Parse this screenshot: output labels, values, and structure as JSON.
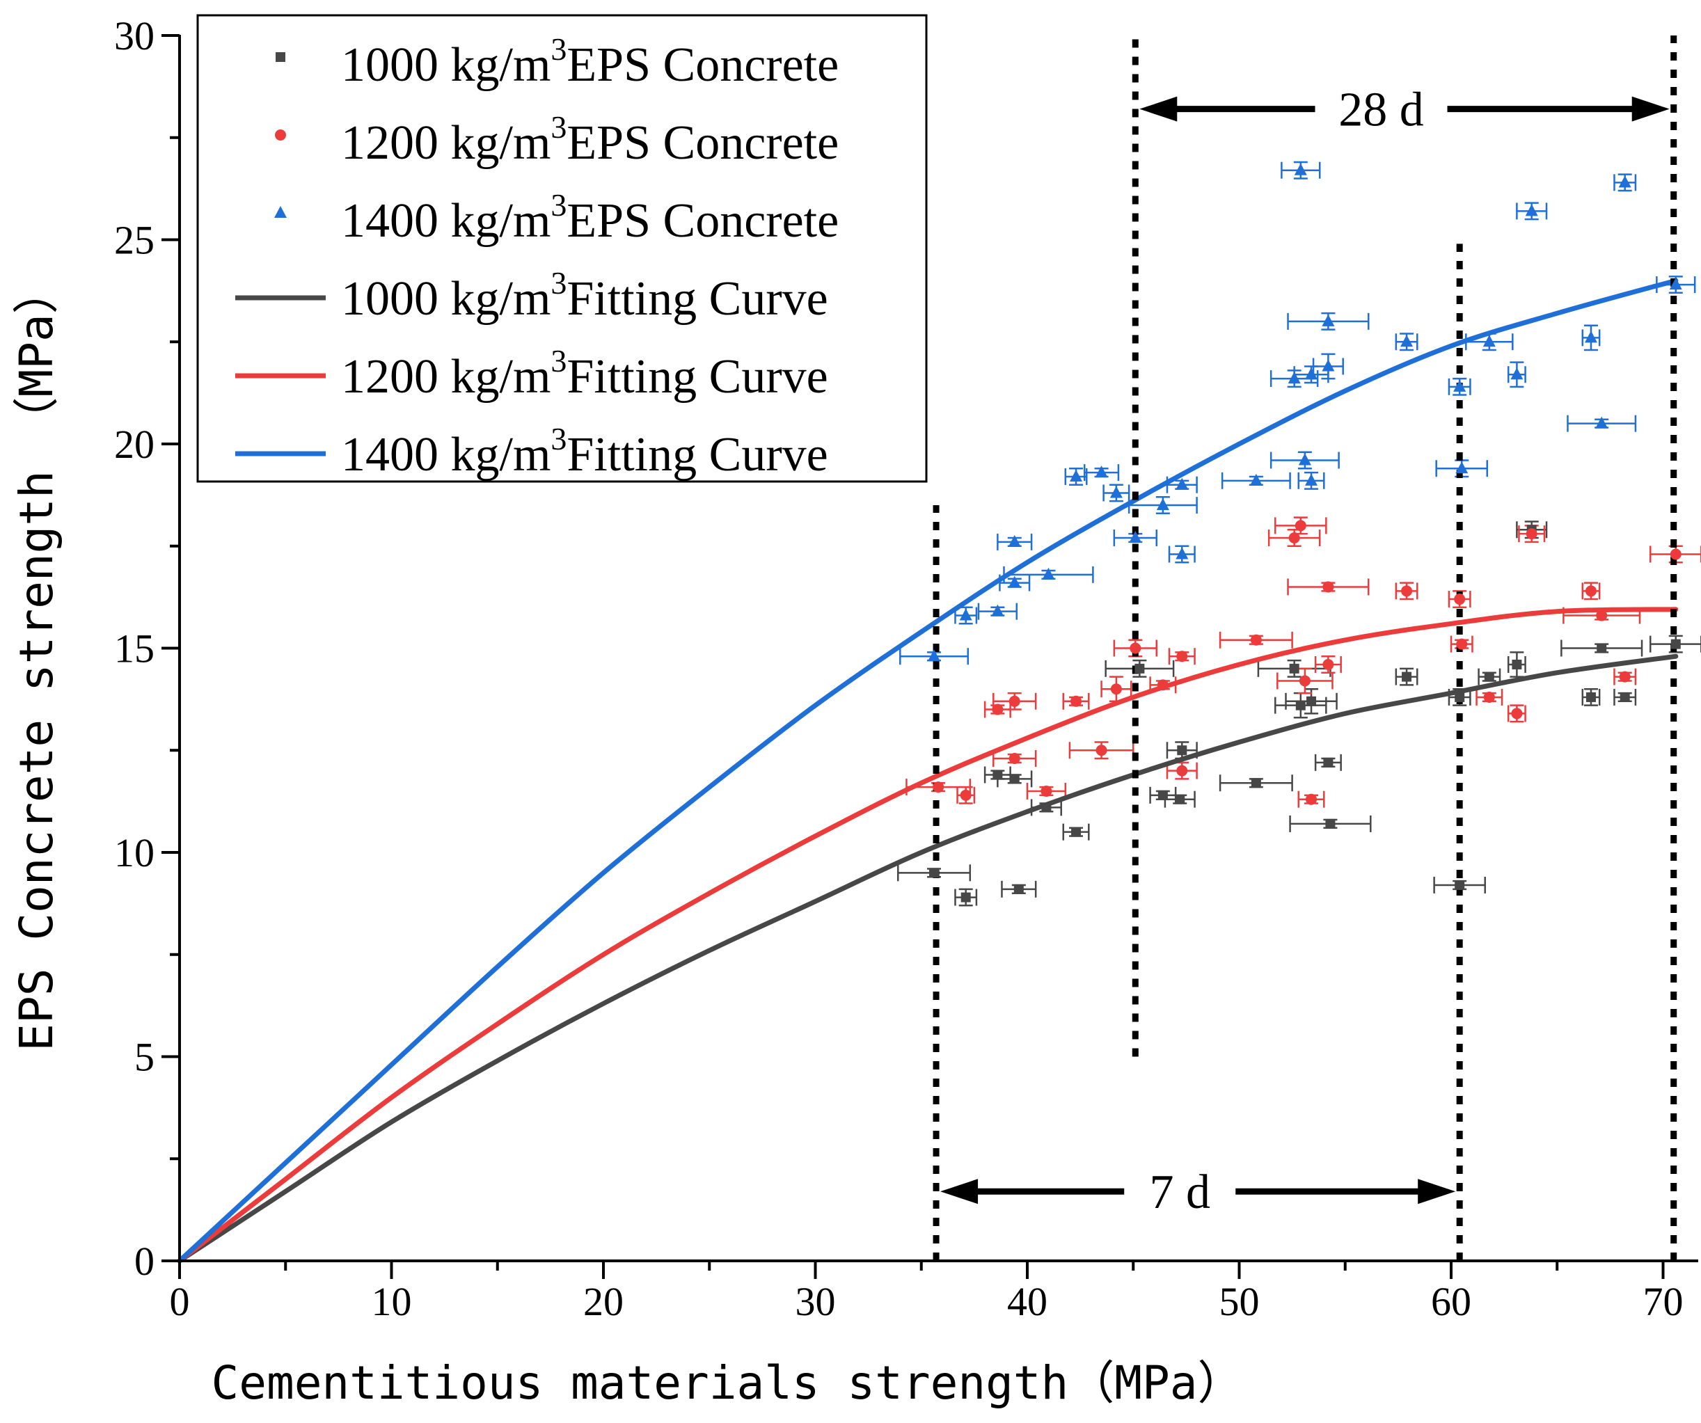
{
  "chart_data": {
    "type": "scatter",
    "title": "",
    "xlabel": "Cementitious materials strength（MPa）",
    "ylabel": "EPS Concrete strength （MPa）",
    "xlim": [
      0,
      72
    ],
    "ylim": [
      0,
      30
    ],
    "x_ticks": [
      "0",
      "10",
      "20",
      "30",
      "40",
      "50",
      "60",
      "70"
    ],
    "y_ticks": [
      "0",
      "5",
      "10",
      "15",
      "20",
      "25",
      "30"
    ],
    "grid": false,
    "legend_position": "top-left",
    "colors": {
      "s1000": "#474747",
      "s1200": "#ec3b3b",
      "s1400": "#1f6fd8",
      "f1000": "#474747",
      "f1200": "#ec3b3b",
      "f1400": "#1f6fd8",
      "axis": "#000000"
    },
    "legend": [
      {
        "key": "s1000",
        "label": "1000 kg/m",
        "sup": "3",
        "suffix": "EPS Concrete",
        "marker": "square"
      },
      {
        "key": "s1200",
        "label": "1200 kg/m",
        "sup": "3",
        "suffix": "EPS Concrete",
        "marker": "circle"
      },
      {
        "key": "s1400",
        "label": "1400 kg/m",
        "sup": "3",
        "suffix": "EPS Concrete",
        "marker": "triangle"
      },
      {
        "key": "f1000",
        "label": "1000 kg/m",
        "sup": "3",
        "suffix": "Fitting Curve",
        "marker": "line"
      },
      {
        "key": "f1200",
        "label": "1200 kg/m",
        "sup": "3",
        "suffix": "Fitting Curve",
        "marker": "line"
      },
      {
        "key": "f1400",
        "label": "1400 kg/m",
        "sup": "3",
        "suffix": "Fitting Curve",
        "marker": "line"
      }
    ],
    "series": [
      {
        "name": "1000 kg/m3 EPS Concrete",
        "key": "s1000",
        "marker": "square",
        "points": [
          {
            "x": 35.6,
            "y": 9.5,
            "xerr": 1.7,
            "yerr": 0.1
          },
          {
            "x": 37.1,
            "y": 8.9,
            "xerr": 0.5,
            "yerr": 0.2
          },
          {
            "x": 38.6,
            "y": 11.9,
            "xerr": 0.6,
            "yerr": 0.1
          },
          {
            "x": 39.4,
            "y": 11.8,
            "xerr": 0.8,
            "yerr": 0.1
          },
          {
            "x": 39.6,
            "y": 9.1,
            "xerr": 0.8,
            "yerr": 0.1
          },
          {
            "x": 40.9,
            "y": 11.1,
            "xerr": 0.7,
            "yerr": 0.1
          },
          {
            "x": 42.3,
            "y": 10.5,
            "xerr": 0.6,
            "yerr": 0.1
          },
          {
            "x": 45.3,
            "y": 14.5,
            "xerr": 1.6,
            "yerr": 0.2
          },
          {
            "x": 46.4,
            "y": 11.4,
            "xerr": 0.6,
            "yerr": 0.1
          },
          {
            "x": 47.2,
            "y": 11.3,
            "xerr": 0.7,
            "yerr": 0.1
          },
          {
            "x": 47.3,
            "y": 12.5,
            "xerr": 0.7,
            "yerr": 0.2
          },
          {
            "x": 50.8,
            "y": 11.7,
            "xerr": 1.7,
            "yerr": 0.1
          },
          {
            "x": 52.6,
            "y": 14.5,
            "xerr": 1.7,
            "yerr": 0.2
          },
          {
            "x": 52.9,
            "y": 13.6,
            "xerr": 1.2,
            "yerr": 0.3
          },
          {
            "x": 53.4,
            "y": 13.7,
            "xerr": 1.2,
            "yerr": 0.3
          },
          {
            "x": 54.2,
            "y": 12.2,
            "xerr": 0.6,
            "yerr": 0.1
          },
          {
            "x": 54.3,
            "y": 10.7,
            "xerr": 1.9,
            "yerr": 0.1
          },
          {
            "x": 57.9,
            "y": 14.3,
            "xerr": 0.5,
            "yerr": 0.2
          },
          {
            "x": 60.4,
            "y": 9.2,
            "xerr": 1.2,
            "yerr": 0.1
          },
          {
            "x": 60.4,
            "y": 13.8,
            "xerr": 0.5,
            "yerr": 0.2
          },
          {
            "x": 61.8,
            "y": 14.3,
            "xerr": 0.5,
            "yerr": 0.1
          },
          {
            "x": 63.1,
            "y": 14.6,
            "xerr": 0.4,
            "yerr": 0.3
          },
          {
            "x": 63.8,
            "y": 17.9,
            "xerr": 0.7,
            "yerr": 0.2
          },
          {
            "x": 66.6,
            "y": 13.8,
            "xerr": 0.4,
            "yerr": 0.2
          },
          {
            "x": 67.1,
            "y": 15.0,
            "xerr": 1.9,
            "yerr": 0.1
          },
          {
            "x": 68.2,
            "y": 13.8,
            "xerr": 0.5,
            "yerr": 0.1
          },
          {
            "x": 70.6,
            "y": 15.1,
            "xerr": 1.2,
            "yerr": 0.2
          }
        ]
      },
      {
        "name": "1200 kg/m3 EPS Concrete",
        "key": "s1200",
        "marker": "circle",
        "points": [
          {
            "x": 35.8,
            "y": 11.6,
            "xerr": 1.5,
            "yerr": 0.1
          },
          {
            "x": 37.1,
            "y": 11.4,
            "xerr": 0.4,
            "yerr": 0.2
          },
          {
            "x": 38.6,
            "y": 13.5,
            "xerr": 0.6,
            "yerr": 0.1
          },
          {
            "x": 39.4,
            "y": 13.7,
            "xerr": 1.0,
            "yerr": 0.2
          },
          {
            "x": 39.4,
            "y": 12.3,
            "xerr": 1.0,
            "yerr": 0.1
          },
          {
            "x": 40.9,
            "y": 11.5,
            "xerr": 0.9,
            "yerr": 0.1
          },
          {
            "x": 42.3,
            "y": 13.7,
            "xerr": 0.6,
            "yerr": 0.1
          },
          {
            "x": 43.5,
            "y": 12.5,
            "xerr": 1.5,
            "yerr": 0.2
          },
          {
            "x": 44.2,
            "y": 14.0,
            "xerr": 0.7,
            "yerr": 0.3
          },
          {
            "x": 45.1,
            "y": 15.0,
            "xerr": 1.0,
            "yerr": 0.2
          },
          {
            "x": 46.4,
            "y": 14.1,
            "xerr": 0.6,
            "yerr": 0.1
          },
          {
            "x": 47.3,
            "y": 14.8,
            "xerr": 0.6,
            "yerr": 0.1
          },
          {
            "x": 47.3,
            "y": 12.0,
            "xerr": 0.7,
            "yerr": 0.2
          },
          {
            "x": 50.8,
            "y": 15.2,
            "xerr": 1.7,
            "yerr": 0.1
          },
          {
            "x": 52.6,
            "y": 17.7,
            "xerr": 1.2,
            "yerr": 0.2
          },
          {
            "x": 52.9,
            "y": 18.0,
            "xerr": 1.2,
            "yerr": 0.2
          },
          {
            "x": 53.1,
            "y": 14.2,
            "xerr": 1.3,
            "yerr": 0.3
          },
          {
            "x": 53.4,
            "y": 11.3,
            "xerr": 0.6,
            "yerr": 0.1
          },
          {
            "x": 54.2,
            "y": 16.5,
            "xerr": 1.9,
            "yerr": 0.1
          },
          {
            "x": 54.2,
            "y": 14.6,
            "xerr": 0.6,
            "yerr": 0.2
          },
          {
            "x": 57.9,
            "y": 16.4,
            "xerr": 0.5,
            "yerr": 0.2
          },
          {
            "x": 60.4,
            "y": 16.2,
            "xerr": 0.5,
            "yerr": 0.2
          },
          {
            "x": 60.5,
            "y": 15.1,
            "xerr": 0.5,
            "yerr": 0.1
          },
          {
            "x": 61.8,
            "y": 13.8,
            "xerr": 0.6,
            "yerr": 0.1
          },
          {
            "x": 63.1,
            "y": 13.4,
            "xerr": 0.4,
            "yerr": 0.2
          },
          {
            "x": 63.8,
            "y": 17.8,
            "xerr": 0.6,
            "yerr": 0.2
          },
          {
            "x": 66.6,
            "y": 16.4,
            "xerr": 0.4,
            "yerr": 0.2
          },
          {
            "x": 67.1,
            "y": 15.8,
            "xerr": 1.8,
            "yerr": 0.1
          },
          {
            "x": 68.2,
            "y": 14.3,
            "xerr": 0.5,
            "yerr": 0.1
          },
          {
            "x": 70.6,
            "y": 17.3,
            "xerr": 1.2,
            "yerr": 0.2
          }
        ]
      },
      {
        "name": "1400 kg/m3 EPS Concrete",
        "key": "s1400",
        "marker": "triangle",
        "points": [
          {
            "x": 35.6,
            "y": 14.8,
            "xerr": 1.6,
            "yerr": 0.1
          },
          {
            "x": 37.1,
            "y": 15.8,
            "xerr": 0.5,
            "yerr": 0.2
          },
          {
            "x": 38.6,
            "y": 15.9,
            "xerr": 0.9,
            "yerr": 0.1
          },
          {
            "x": 39.4,
            "y": 17.6,
            "xerr": 0.8,
            "yerr": 0.1
          },
          {
            "x": 39.4,
            "y": 16.6,
            "xerr": 0.7,
            "yerr": 0.1
          },
          {
            "x": 41.0,
            "y": 16.8,
            "xerr": 2.1,
            "yerr": 0.1
          },
          {
            "x": 42.3,
            "y": 19.2,
            "xerr": 0.5,
            "yerr": 0.2
          },
          {
            "x": 43.5,
            "y": 19.3,
            "xerr": 0.8,
            "yerr": 0.1
          },
          {
            "x": 44.2,
            "y": 18.8,
            "xerr": 0.6,
            "yerr": 0.2
          },
          {
            "x": 45.1,
            "y": 17.7,
            "xerr": 1.0,
            "yerr": 0.1
          },
          {
            "x": 46.4,
            "y": 18.5,
            "xerr": 1.6,
            "yerr": 0.2
          },
          {
            "x": 47.3,
            "y": 19.0,
            "xerr": 0.7,
            "yerr": 0.1
          },
          {
            "x": 47.3,
            "y": 17.3,
            "xerr": 0.6,
            "yerr": 0.2
          },
          {
            "x": 50.8,
            "y": 19.1,
            "xerr": 1.6,
            "yerr": 0.1
          },
          {
            "x": 52.6,
            "y": 21.6,
            "xerr": 1.1,
            "yerr": 0.2
          },
          {
            "x": 52.9,
            "y": 26.7,
            "xerr": 0.9,
            "yerr": 0.2
          },
          {
            "x": 53.1,
            "y": 19.6,
            "xerr": 1.6,
            "yerr": 0.2
          },
          {
            "x": 53.4,
            "y": 21.7,
            "xerr": 0.8,
            "yerr": 0.2
          },
          {
            "x": 53.4,
            "y": 19.1,
            "xerr": 0.6,
            "yerr": 0.2
          },
          {
            "x": 54.2,
            "y": 23.0,
            "xerr": 1.9,
            "yerr": 0.2
          },
          {
            "x": 54.2,
            "y": 21.9,
            "xerr": 0.7,
            "yerr": 0.3
          },
          {
            "x": 57.9,
            "y": 22.5,
            "xerr": 0.5,
            "yerr": 0.2
          },
          {
            "x": 60.4,
            "y": 21.4,
            "xerr": 0.5,
            "yerr": 0.2
          },
          {
            "x": 60.5,
            "y": 19.4,
            "xerr": 1.2,
            "yerr": 0.2
          },
          {
            "x": 61.8,
            "y": 22.5,
            "xerr": 1.1,
            "yerr": 0.2
          },
          {
            "x": 63.1,
            "y": 21.7,
            "xerr": 0.4,
            "yerr": 0.3
          },
          {
            "x": 63.8,
            "y": 25.7,
            "xerr": 0.7,
            "yerr": 0.2
          },
          {
            "x": 66.6,
            "y": 22.6,
            "xerr": 0.4,
            "yerr": 0.3
          },
          {
            "x": 67.1,
            "y": 20.5,
            "xerr": 1.6,
            "yerr": 0.1
          },
          {
            "x": 68.2,
            "y": 26.4,
            "xerr": 0.5,
            "yerr": 0.2
          },
          {
            "x": 70.6,
            "y": 23.9,
            "xerr": 0.9,
            "yerr": 0.2
          }
        ]
      }
    ],
    "fitting_curves": [
      {
        "name": "1000 kg/m3 Fitting Curve",
        "key": "f1000",
        "x": [
          0,
          5,
          10,
          15,
          20,
          25,
          30,
          35,
          40,
          45,
          50,
          55,
          60,
          65,
          70.6
        ],
        "y": [
          0,
          1.7,
          3.4,
          4.9,
          6.3,
          7.6,
          8.8,
          10.0,
          11.0,
          11.9,
          12.7,
          13.4,
          13.9,
          14.4,
          14.8
        ]
      },
      {
        "name": "1200 kg/m3 Fitting Curve",
        "key": "f1200",
        "x": [
          0,
          5,
          10,
          15,
          20,
          25,
          30,
          35,
          40,
          45,
          50,
          55,
          60,
          65,
          70.6
        ],
        "y": [
          0,
          2.0,
          4.0,
          5.8,
          7.5,
          9.0,
          10.4,
          11.7,
          12.8,
          13.8,
          14.6,
          15.2,
          15.6,
          15.9,
          15.95
        ]
      },
      {
        "name": "1400 kg/m3 Fitting Curve",
        "key": "f1400",
        "x": [
          0,
          5,
          10,
          15,
          20,
          25,
          30,
          35,
          40,
          45,
          50,
          55,
          60,
          65,
          70.6
        ],
        "y": [
          0,
          2.4,
          4.8,
          7.2,
          9.5,
          11.6,
          13.6,
          15.4,
          17.1,
          18.6,
          20.0,
          21.3,
          22.4,
          23.2,
          24.0
        ]
      }
    ],
    "reference_lines": [
      {
        "x": 35.7,
        "y_from": 0,
        "y_to": 18.5
      },
      {
        "x": 45.1,
        "y_from": 5.0,
        "y_to": 30
      },
      {
        "x": 60.4,
        "y_from": 0,
        "y_to": 24.9
      },
      {
        "x": 70.5,
        "y_from": 0,
        "y_to": 30
      }
    ],
    "annotations": [
      {
        "label": "7 d",
        "x_from": 35.7,
        "x_to": 60.4,
        "y": 1.7,
        "label_x": 47.2
      },
      {
        "label": "28 d",
        "x_from": 45.1,
        "x_to": 70.5,
        "y": 28.2,
        "label_x": 56.7
      }
    ]
  }
}
